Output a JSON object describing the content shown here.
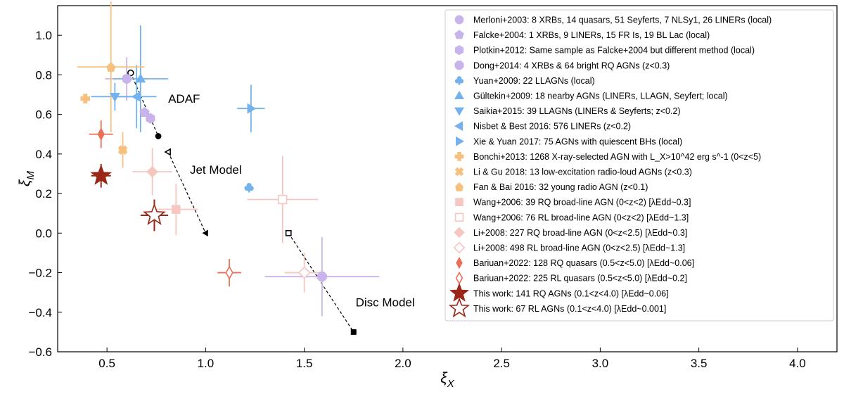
{
  "chart_data": {
    "type": "scatter",
    "xlabel": "ξ",
    "xlabel_sub": "X",
    "ylabel": "ξ",
    "ylabel_sub": "M",
    "xlim": [
      0.25,
      4.2
    ],
    "ylim": [
      -0.6,
      1.15
    ],
    "x_ticks": [
      0.5,
      1.0,
      1.5,
      2.0,
      2.5,
      3.0,
      3.5,
      4.0
    ],
    "x_tick_labels": [
      "0.5",
      "1.0",
      "1.5",
      "2.0",
      "2.5",
      "3.0",
      "3.5",
      "4.0"
    ],
    "y_ticks": [
      -0.6,
      -0.4,
      -0.2,
      0.0,
      0.2,
      0.4,
      0.6,
      0.8,
      1.0
    ],
    "y_tick_labels": [
      "−0.6",
      "−0.4",
      "−0.2",
      "0.0",
      "0.2",
      "0.4",
      "0.6",
      "0.8",
      "1.0"
    ],
    "legend_position": "top-right",
    "annotations": [
      {
        "text": "ADAF",
        "x": 0.81,
        "y": 0.66
      },
      {
        "text": "Jet Model",
        "x": 0.92,
        "y": 0.3
      },
      {
        "text": "Disc Model",
        "x": 1.76,
        "y": -0.37
      }
    ],
    "model_tracks": [
      {
        "name": "ADAF",
        "x": [
          0.62,
          0.76
        ],
        "y": [
          0.81,
          0.49
        ],
        "start_marker": "circle-open",
        "end_marker": "circle"
      },
      {
        "name": "Jet Model",
        "x": [
          0.81,
          1.0
        ],
        "y": [
          0.41,
          0.0
        ],
        "start_marker": "triangle-open",
        "end_marker": "triangle"
      },
      {
        "name": "Disc Model",
        "x": [
          1.42,
          1.75
        ],
        "y": [
          0.0,
          -0.5
        ],
        "start_marker": "square-open",
        "end_marker": "square"
      }
    ],
    "series": [
      {
        "name": "Merloni+2003",
        "label": "Merloni+2003: 8 XRBs, 14 quasars, 51 Seyferts, 7 NLSy1, 26 LINERs (local)",
        "marker": "circle",
        "color": "#c8b3ea",
        "filled": true,
        "points": [
          {
            "x": 0.6,
            "y": 0.78,
            "xerr": 0.11,
            "yerr": 0.11
          }
        ]
      },
      {
        "name": "Falcke+2004",
        "label": "Falcke+2004: 1 XRBs, 9 LINERs, 15 FR Is, 19 BL Lac (local)",
        "marker": "pentagon",
        "color": "#c8b3ea",
        "filled": true,
        "points": [
          {
            "x": 0.69,
            "y": 0.61,
            "xerr": 0,
            "yerr": 0
          }
        ]
      },
      {
        "name": "Plotkin+2012",
        "label": "Plotkin+2012: Same sample as Falcke+2004 but different method (local)",
        "marker": "hexagon",
        "color": "#c8b3ea",
        "filled": true,
        "points": [
          {
            "x": 0.72,
            "y": 0.58,
            "xerr": 0,
            "yerr": 0
          }
        ]
      },
      {
        "name": "Dong+2014",
        "label": "Dong+2014: 4 XRBs & 64 bright RQ AGNs (z<0.3)",
        "marker": "octagon",
        "color": "#c8b3ea",
        "filled": true,
        "points": [
          {
            "x": 1.59,
            "y": -0.22,
            "xerr": 0.29,
            "yerr": 0.2
          }
        ]
      },
      {
        "name": "Yuan+2009",
        "label": "Yuan+2009: 22 LLAGNs (local)",
        "marker": "club",
        "color": "#74b2ee",
        "filled": true,
        "points": [
          {
            "x": 1.22,
            "y": 0.23,
            "xerr": 0,
            "yerr": 0
          }
        ]
      },
      {
        "name": "Gultekin+2009",
        "label": "Gültekin+2009: 18 nearby AGNs (LINERs, LLAGN, Seyfert; local)",
        "marker": "triangle-up",
        "color": "#74b2ee",
        "filled": true,
        "points": [
          {
            "x": 0.67,
            "y": 0.78,
            "xerr": 0.14,
            "yerr": 0.27
          }
        ]
      },
      {
        "name": "Saikia+2015",
        "label": "Saikia+2015: 39 LLAGNs (LINERs & Seyferts; z<0.2)",
        "marker": "triangle-down",
        "color": "#74b2ee",
        "filled": true,
        "points": [
          {
            "x": 0.54,
            "y": 0.69,
            "xerr": 0.12,
            "yerr": 0.07
          }
        ]
      },
      {
        "name": "Nisbet & Best 2016",
        "label": "Nisbet & Best 2016: 576 LINERs (z<0.2)",
        "marker": "triangle-left",
        "color": "#74b2ee",
        "filled": true,
        "points": [
          {
            "x": 0.65,
            "y": 0.69,
            "xerr": 0.1,
            "yerr": 0.16
          }
        ]
      },
      {
        "name": "Xie & Yuan 2017",
        "label": "Xie & Yuan 2017: 75 AGNs with quiescent BHs (local)",
        "marker": "triangle-right",
        "color": "#74b2ee",
        "filled": true,
        "points": [
          {
            "x": 1.23,
            "y": 0.63,
            "xerr": 0.07,
            "yerr": 0.12
          }
        ]
      },
      {
        "name": "Bonchi+2013",
        "label": "Bonchi+2013: 1268 X-ray-selected AGN with L_X>10^42 erg s^-1 (0<z<5)",
        "marker": "plus",
        "color": "#f6c07f",
        "filled": true,
        "points": [
          {
            "x": 0.39,
            "y": 0.68,
            "xerr": 0,
            "yerr": 0
          }
        ]
      },
      {
        "name": "Li & Gu 2018",
        "label": "Li & Gu 2018: 13 low-excitation radio-loud AGNs (z<0.3)",
        "marker": "x",
        "color": "#f6c07f",
        "filled": true,
        "points": [
          {
            "x": 0.58,
            "y": 0.42,
            "xerr": 0.02,
            "yerr": 0.09
          }
        ]
      },
      {
        "name": "Fan & Bai 2016",
        "label": "Fan & Bai 2016: 32 young radio AGN (z<0.1)",
        "marker": "house",
        "color": "#f6c07f",
        "filled": true,
        "points": [
          {
            "x": 0.52,
            "y": 0.84,
            "xerr": 0.17,
            "yerr": 0.33
          }
        ]
      },
      {
        "name": "Wang+2006 RQ",
        "label": "Wang+2006: 39 RQ broad-line AGN (0<z<2) [λEdd~0.3]",
        "marker": "square",
        "color": "#f6c6c0",
        "filled": true,
        "points": [
          {
            "x": 0.85,
            "y": 0.12,
            "xerr": 0.11,
            "yerr": 0.13
          }
        ]
      },
      {
        "name": "Wang+2006 RL",
        "label": "Wang+2006: 76 RL broad-line AGN (0<z<2) [λEdd~1.3]",
        "marker": "square",
        "color": "#f6c6c0",
        "filled": false,
        "points": [
          {
            "x": 1.39,
            "y": 0.17,
            "xerr": 0.18,
            "yerr": 0.22
          }
        ]
      },
      {
        "name": "Li+2008 RQ",
        "label": "Li+2008: 227 RQ broad-line AGN (0<z<2.5) [λEdd~0.3]",
        "marker": "diamond",
        "color": "#f6c6c0",
        "filled": true,
        "points": [
          {
            "x": 0.73,
            "y": 0.31,
            "xerr": 0.1,
            "yerr": 0.12
          }
        ]
      },
      {
        "name": "Li+2008 RL",
        "label": "Li+2008: 498 RL broad-line AGN (0<z<2.5) [λEdd~1.3]",
        "marker": "diamond",
        "color": "#f6c6c0",
        "filled": false,
        "points": [
          {
            "x": 1.5,
            "y": -0.2,
            "xerr": 0.1,
            "yerr": 0.1
          }
        ]
      },
      {
        "name": "Bariuan+2022 RQ",
        "label": "Bariuan+2022: 128 RQ quasars (0.5<z<5.0) [λEdd~0.06]",
        "marker": "thin-diamond",
        "color": "#eb6f56",
        "filled": true,
        "points": [
          {
            "x": 0.47,
            "y": 0.5,
            "xerr": 0.06,
            "yerr": 0.07
          }
        ]
      },
      {
        "name": "Bariuan+2022 RL",
        "label": "Bariuan+2022: 225 RL quasars (0.5<z<5.0) [λEdd~0.2]",
        "marker": "thin-diamond",
        "color": "#eb6f56",
        "filled": false,
        "points": [
          {
            "x": 1.12,
            "y": -0.2,
            "xerr": 0.06,
            "yerr": 0.07
          }
        ]
      },
      {
        "name": "This work RQ",
        "label": "This work: 141 RQ AGNs (0.1<z<4.0) [λEdd~0.06]",
        "marker": "star",
        "color": "#9b2516",
        "filled": true,
        "points": [
          {
            "x": 0.47,
            "y": 0.29,
            "xerr": 0.05,
            "yerr": 0.06
          }
        ]
      },
      {
        "name": "This work RL",
        "label": "This work: 67 RL AGNs (0.1<z<4.0) [λEdd~0.001]",
        "marker": "star",
        "color": "#9b2516",
        "filled": false,
        "points": [
          {
            "x": 0.74,
            "y": 0.09,
            "xerr": 0.07,
            "yerr": 0.08
          }
        ]
      }
    ]
  }
}
